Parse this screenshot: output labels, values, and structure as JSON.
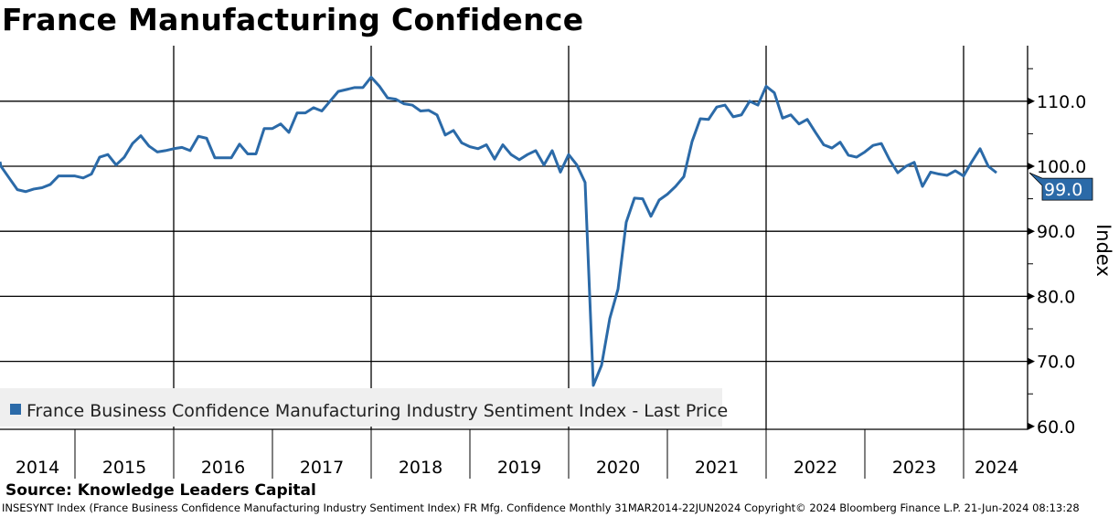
{
  "chart_data": {
    "type": "line",
    "title": "France Manufacturing Confidence",
    "ylabel": "Index",
    "xlabel": "",
    "ylim": [
      59.6,
      118.5
    ],
    "yticks": [
      60,
      70,
      80,
      90,
      100,
      110
    ],
    "ytick_labels": [
      "60.0",
      "70.0",
      "80.0",
      "90.0",
      "100.0",
      "110.0"
    ],
    "year_labels": [
      "2014",
      "2015",
      "2016",
      "2017",
      "2018",
      "2019",
      "2020",
      "2021",
      "2022",
      "2023",
      "2024"
    ],
    "grid": true,
    "legend_position": "bottom-left",
    "start_month": "2014-03",
    "frequency": "monthly",
    "series": [
      {
        "name": "France Business Confidence Manufacturing Industry Sentiment Index - Last Price",
        "color": "#2b6aa8",
        "last_value_label": "99.0",
        "values": [
          100.7,
          100.0,
          98.2,
          96.4,
          96.1,
          96.5,
          96.7,
          97.2,
          98.5,
          98.5,
          98.5,
          98.2,
          98.8,
          101.4,
          101.8,
          100.2,
          101.4,
          103.5,
          104.7,
          103.1,
          102.2,
          102.4,
          102.7,
          102.9,
          102.4,
          104.6,
          104.3,
          101.3,
          101.3,
          101.3,
          103.4,
          101.9,
          101.9,
          105.8,
          105.8,
          106.5,
          105.2,
          108.2,
          108.2,
          109.0,
          108.5,
          110.0,
          111.5,
          111.8,
          112.1,
          112.1,
          113.7,
          112.3,
          110.5,
          110.3,
          109.6,
          109.4,
          108.5,
          108.6,
          107.9,
          104.8,
          105.5,
          103.6,
          103.0,
          102.7,
          103.3,
          101.1,
          103.3,
          101.8,
          101.0,
          101.8,
          102.4,
          100.2,
          102.4,
          99.1,
          101.8,
          100.2,
          97.5,
          66.3,
          69.4,
          76.6,
          81.1,
          91.4,
          95.1,
          95.0,
          92.3,
          94.8,
          95.7,
          96.9,
          98.4,
          103.8,
          107.3,
          107.2,
          109.1,
          109.4,
          107.6,
          107.9,
          110.0,
          109.4,
          112.3,
          111.3,
          107.4,
          107.9,
          106.5,
          107.2,
          105.2,
          103.3,
          102.8,
          103.7,
          101.7,
          101.4,
          102.2,
          103.2,
          103.5,
          101.0,
          99.0,
          100.0,
          100.6,
          96.9,
          99.1,
          98.8,
          98.6,
          99.3,
          98.5,
          100.7,
          102.7,
          100.0,
          99.0
        ]
      }
    ]
  },
  "source": "Source: Knowledge Leaders Capital",
  "footer": "INSESYNT Index (France Business Confidence Manufacturing Industry Sentiment Index) FR Mfg. Confidence  Monthly 31MAR2014-22JUN2024  Copyright© 2024 Bloomberg Finance L.P.  21-Jun-2024 08:13:28"
}
